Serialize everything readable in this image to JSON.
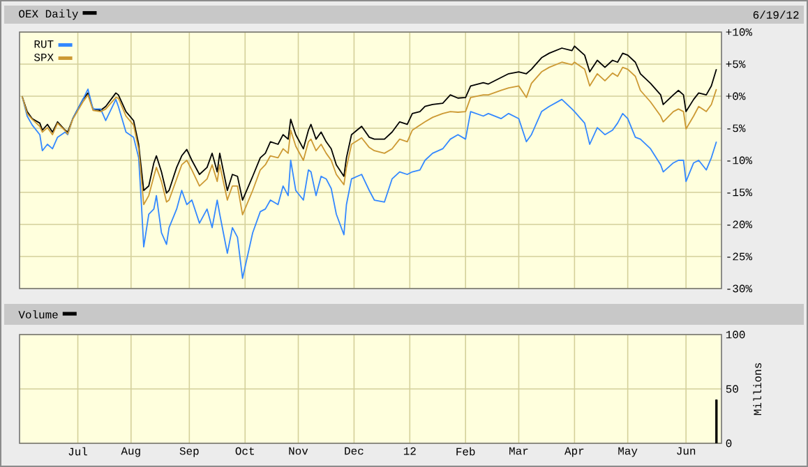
{
  "chart_data": [
    {
      "type": "line",
      "annotations": [
        "6/19/12"
      ],
      "legend": "top left",
      "grid": true,
      "tick_labels": "y",
      "x": [
        "2011-06-01",
        "2011-06-03",
        "2011-06-07",
        "2011-06-10",
        "2011-06-13",
        "2011-06-15",
        "2011-06-17",
        "2011-06-21",
        "2011-06-24",
        "2011-06-27",
        "2011-06-29",
        "2011-07-05",
        "2011-07-07",
        "2011-07-11",
        "2011-07-14",
        "2011-07-18",
        "2011-07-22",
        "2011-07-25",
        "2011-07-28",
        "2011-08-02",
        "2011-08-04",
        "2011-08-05",
        "2011-08-08",
        "2011-08-10",
        "2011-08-12",
        "2011-08-15",
        "2011-08-17",
        "2011-08-19",
        "2011-08-22",
        "2011-08-25",
        "2011-08-29",
        "2011-08-31",
        "2011-09-02",
        "2011-09-07",
        "2011-09-12",
        "2011-09-14",
        "2011-09-16",
        "2011-09-19",
        "2011-09-22",
        "2011-09-26",
        "2011-09-28",
        "2011-09-30",
        "2011-10-06",
        "2011-10-11",
        "2011-10-13",
        "2011-10-17",
        "2011-10-20",
        "2011-10-24",
        "2011-10-26",
        "2011-10-27",
        "2011-10-31",
        "2011-11-03",
        "2011-11-07",
        "2011-11-08",
        "2011-11-10",
        "2011-11-14",
        "2011-11-16",
        "2011-11-18",
        "2011-11-22",
        "2011-11-25",
        "2011-11-28",
        "2011-11-30",
        "2011-12-06",
        "2011-12-09",
        "2011-12-13",
        "2011-12-19",
        "2011-12-22",
        "2011-12-27",
        "2011-12-30",
        "2012-01-03",
        "2012-01-06",
        "2012-01-10",
        "2012-01-13",
        "2012-01-19",
        "2012-01-24",
        "2012-01-27",
        "2012-02-01",
        "2012-02-03",
        "2012-02-10",
        "2012-02-14",
        "2012-02-21",
        "2012-02-24",
        "2012-03-01",
        "2012-03-06",
        "2012-03-08",
        "2012-03-14",
        "2012-03-19",
        "2012-03-26",
        "2012-03-30",
        "2012-04-02",
        "2012-04-06",
        "2012-04-10",
        "2012-04-13",
        "2012-04-18",
        "2012-04-23",
        "2012-04-25",
        "2012-04-27",
        "2012-05-01",
        "2012-05-04",
        "2012-05-08",
        "2012-05-14",
        "2012-05-18",
        "2012-05-21",
        "2012-05-25",
        "2012-05-29",
        "2012-05-31",
        "2012-06-01",
        "2012-06-06",
        "2012-06-08",
        "2012-06-13",
        "2012-06-15",
        "2012-06-19"
      ],
      "xlim": [
        "2011-05-31",
        "2012-06-21"
      ],
      "xticks": [
        {
          "value": "2011-07-01",
          "label": null
        },
        {
          "value": "2011-08-01",
          "label": null
        },
        {
          "value": "2011-09-01",
          "label": null
        },
        {
          "value": "2011-10-01",
          "label": null
        },
        {
          "value": "2011-11-01",
          "label": null
        },
        {
          "value": "2011-12-01",
          "label": null
        },
        {
          "value": "2012-01-01",
          "label": null
        },
        {
          "value": "2012-02-01",
          "label": null
        },
        {
          "value": "2012-03-01",
          "label": null
        },
        {
          "value": "2012-04-01",
          "label": null
        },
        {
          "value": "2012-05-01",
          "label": null
        },
        {
          "value": "2012-06-01",
          "label": null
        }
      ],
      "ylim": [
        -30,
        10
      ],
      "yticks": [
        {
          "value": 10,
          "label": "+10%"
        },
        {
          "value": 5,
          "label": "+5%"
        },
        {
          "value": 0,
          "label": "+0%"
        },
        {
          "value": -5,
          "label": "-5%"
        },
        {
          "value": -10,
          "label": "-10%"
        },
        {
          "value": -15,
          "label": "-15%"
        },
        {
          "value": -20,
          "label": "-20%"
        },
        {
          "value": -25,
          "label": "-25%"
        },
        {
          "value": -30,
          "label": "-30%"
        }
      ],
      "series": [
        {
          "name": "OEX Daily",
          "color": "#000000",
          "values": [
            0.0,
            -2.4,
            -3.5,
            -4.2,
            -5.3,
            -4.4,
            -5.6,
            -4.0,
            -5.3,
            -5.6,
            -3.5,
            -0.5,
            0.5,
            -2.0,
            -2.2,
            -1.6,
            0.5,
            0.2,
            -2.4,
            -3.8,
            -7.5,
            -11.1,
            -14.7,
            -14.0,
            -10.4,
            -9.3,
            -11.8,
            -15.1,
            -14.7,
            -11.1,
            -9.3,
            -8.3,
            -10.0,
            -12.2,
            -11.1,
            -8.9,
            -11.8,
            -8.9,
            -14.7,
            -12.2,
            -12.5,
            -16.2,
            -12.5,
            -9.6,
            -8.9,
            -7.1,
            -7.5,
            -6.0,
            -6.7,
            -3.6,
            -6.0,
            -8.2,
            -5.3,
            -4.4,
            -6.7,
            -5.6,
            -7.1,
            -8.2,
            -10.7,
            -12.5,
            -9.6,
            -6.0,
            -4.7,
            -6.4,
            -6.7,
            -6.7,
            -5.6,
            -4.0,
            -4.4,
            -2.7,
            -2.4,
            -1.6,
            -1.3,
            -1.1,
            0.2,
            -0.3,
            -0.2,
            1.6,
            2.1,
            1.9,
            2.9,
            3.5,
            3.8,
            3.5,
            4.2,
            6.0,
            6.7,
            7.5,
            7.1,
            7.8,
            6.4,
            3.8,
            5.6,
            4.5,
            5.6,
            5.3,
            6.7,
            6.4,
            5.3,
            3.5,
            2.0,
            0.2,
            -1.3,
            0.2,
            0.9,
            0.2,
            -2.4,
            -0.5,
            0.5,
            0.2,
            1.6,
            4.2
          ]
        },
        {
          "name": "RUT",
          "color": "#3388ff",
          "values": [
            0.0,
            -3.1,
            -4.5,
            -6.0,
            -8.5,
            -7.5,
            -8.2,
            -6.4,
            -5.6,
            -6.0,
            -3.5,
            -0.5,
            1.1,
            -2.0,
            -2.0,
            -3.8,
            -0.5,
            -1.6,
            -5.6,
            -6.4,
            -9.6,
            -16.2,
            -23.5,
            -18.4,
            -17.6,
            -15.5,
            -21.3,
            -23.1,
            -20.5,
            -17.6,
            -14.7,
            -16.9,
            -16.2,
            -19.8,
            -17.6,
            -20.5,
            -16.2,
            -18.4,
            -24.5,
            -20.5,
            -22.0,
            -28.4,
            -21.3,
            -18.0,
            -17.6,
            -16.2,
            -16.9,
            -14.0,
            -15.5,
            -10.0,
            -14.7,
            -16.2,
            -11.5,
            -11.8,
            -15.5,
            -12.5,
            -12.9,
            -14.4,
            -18.4,
            -21.6,
            -16.9,
            -12.9,
            -12.2,
            -14.7,
            -16.2,
            -16.5,
            -12.9,
            -11.8,
            -12.2,
            -11.8,
            -11.5,
            -10.0,
            -8.9,
            -8.2,
            -6.7,
            -6.0,
            -6.7,
            -2.4,
            -3.1,
            -2.7,
            -3.5,
            -2.7,
            -3.5,
            -7.1,
            -6.0,
            -2.4,
            -1.6,
            -0.5,
            -2.0,
            -2.4,
            -4.2,
            -7.5,
            -4.9,
            -6.0,
            -5.3,
            -4.2,
            -2.7,
            -3.5,
            -6.4,
            -6.7,
            -8.2,
            -10.7,
            -11.8,
            -10.4,
            -10.0,
            -10.0,
            -13.3,
            -10.4,
            -10.0,
            -11.5,
            -9.6,
            -7.1
          ]
        },
        {
          "name": "SPX",
          "color": "#cc9933",
          "values": [
            0.0,
            -2.7,
            -3.6,
            -4.7,
            -5.6,
            -4.9,
            -6.0,
            -4.2,
            -5.4,
            -5.9,
            -3.6,
            -0.9,
            0.2,
            -2.2,
            -2.4,
            -2.0,
            -0.2,
            -0.3,
            -3.1,
            -4.5,
            -8.2,
            -12.5,
            -16.9,
            -15.5,
            -12.5,
            -11.1,
            -13.3,
            -16.5,
            -16.2,
            -12.9,
            -10.7,
            -10.0,
            -11.5,
            -14.0,
            -12.9,
            -10.7,
            -13.3,
            -10.7,
            -16.2,
            -14.0,
            -14.0,
            -18.5,
            -14.7,
            -11.5,
            -10.7,
            -9.3,
            -9.6,
            -8.2,
            -8.9,
            -5.3,
            -7.8,
            -10.0,
            -7.1,
            -6.7,
            -8.5,
            -7.5,
            -8.9,
            -10.0,
            -12.2,
            -13.8,
            -11.1,
            -7.5,
            -6.5,
            -8.0,
            -8.5,
            -8.9,
            -8.2,
            -6.7,
            -7.1,
            -5.3,
            -4.5,
            -4.0,
            -3.3,
            -2.7,
            -2.4,
            -2.5,
            -2.4,
            -0.2,
            0.2,
            0.2,
            0.9,
            1.3,
            1.6,
            -0.2,
            2.0,
            3.8,
            4.5,
            5.3,
            4.9,
            5.3,
            4.2,
            1.6,
            3.5,
            2.4,
            3.6,
            3.1,
            4.5,
            4.2,
            3.1,
            0.9,
            -0.9,
            -3.1,
            -4.0,
            -2.4,
            -2.0,
            -2.4,
            -5.1,
            -3.1,
            -1.6,
            -2.4,
            -1.3,
            1.1
          ]
        }
      ]
    },
    {
      "type": "bar",
      "title": "Volume",
      "ylabel": "Millions",
      "grid": true,
      "color": "#000000",
      "x": [
        "2012-06-19"
      ],
      "values": [
        40
      ],
      "xlim": [
        "2011-05-31",
        "2012-06-21"
      ],
      "xticks": [
        {
          "value": "2011-07-01",
          "label": "Jul"
        },
        {
          "value": "2011-08-01",
          "label": "Aug"
        },
        {
          "value": "2011-09-01",
          "label": "Sep"
        },
        {
          "value": "2011-10-01",
          "label": "Oct"
        },
        {
          "value": "2011-11-01",
          "label": "Nov"
        },
        {
          "value": "2011-12-01",
          "label": "Dec"
        },
        {
          "value": "2012-01-01",
          "label": "12"
        },
        {
          "value": "2012-02-01",
          "label": "Feb"
        },
        {
          "value": "2012-03-01",
          "label": "Mar"
        },
        {
          "value": "2012-04-01",
          "label": "Apr"
        },
        {
          "value": "2012-05-01",
          "label": "May"
        },
        {
          "value": "2012-06-01",
          "label": "Jun"
        }
      ],
      "ylim": [
        0,
        100
      ],
      "yticks": [
        0,
        50,
        100
      ]
    }
  ]
}
